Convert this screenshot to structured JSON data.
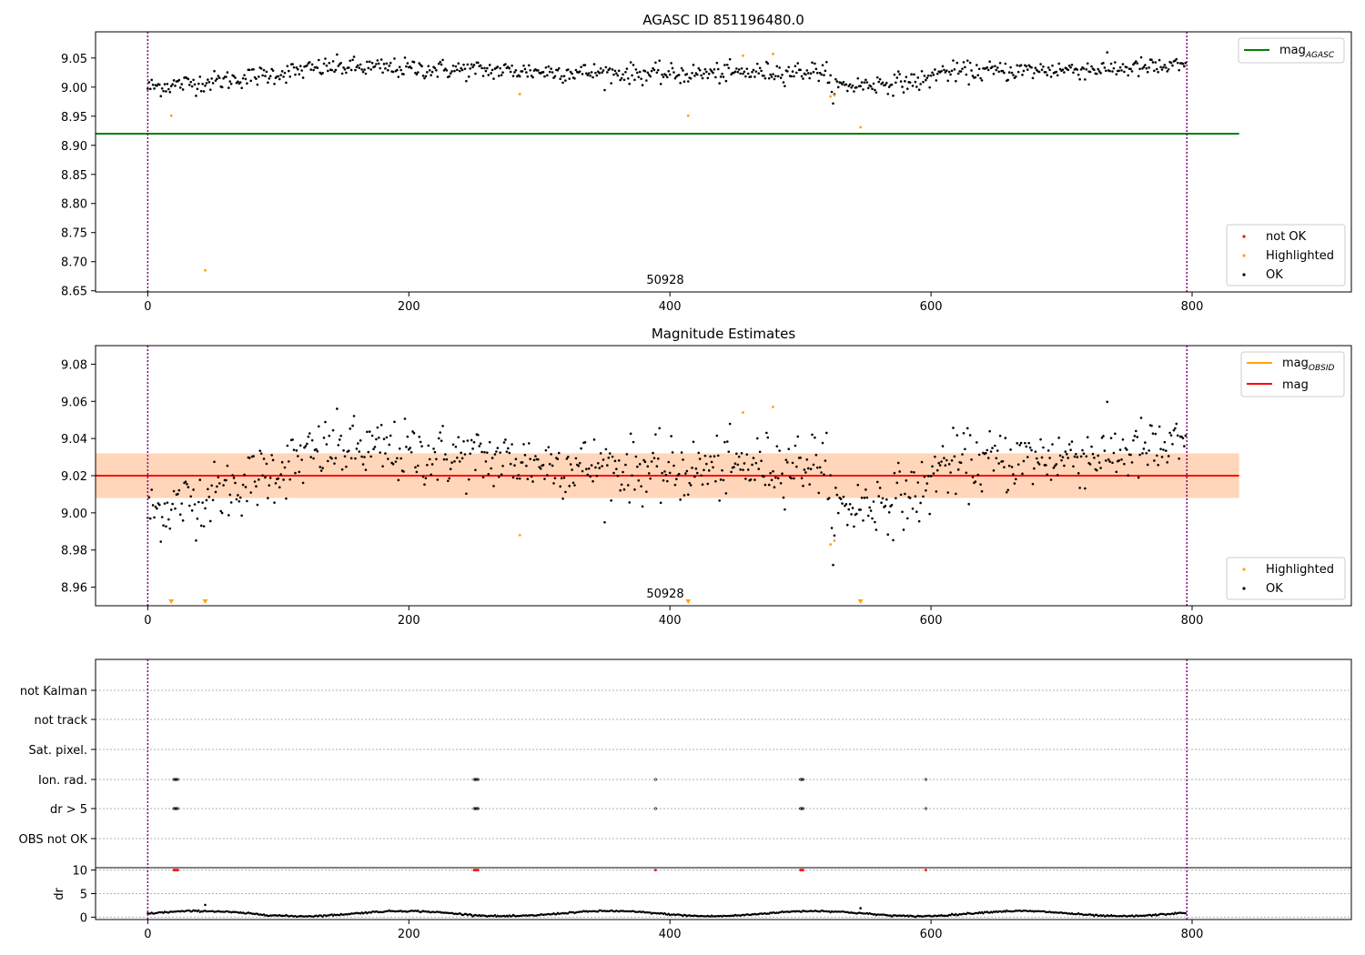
{
  "chart_data": [
    {
      "type": "scatter",
      "title": "AGASC ID 851196480.0",
      "xlabel": "",
      "ylabel": "",
      "xlim": [
        -40,
        922
      ],
      "ylim": [
        8.648,
        9.095
      ],
      "xticks": [
        "0",
        "200",
        "400",
        "600",
        "800"
      ],
      "yticks": [
        "8.65",
        "8.70",
        "8.75",
        "8.80",
        "8.85",
        "8.90",
        "8.95",
        "9.00",
        "9.05"
      ],
      "obsid_label": "50928",
      "obs_boundaries": [
        0,
        796
      ],
      "mag_agasc": 8.92,
      "mag_agasc_x_range": [
        -40,
        836
      ],
      "series_ok": {
        "name": "OK",
        "color": "#000000",
        "n_points": 796,
        "description": "magnitude estimates, mean 9.02",
        "segments": [
          {
            "x": [
              0,
              60
            ],
            "y_start": 9.0,
            "y_end": 9.012
          },
          {
            "x": [
              60,
              140
            ],
            "y_start": 9.012,
            "y_end": 9.035
          },
          {
            "x": [
              140,
              400
            ],
            "y_start": 9.035,
            "y_end": 9.022
          },
          {
            "x": [
              400,
              520
            ],
            "y_start": 9.022,
            "y_end": 9.028
          },
          {
            "x": [
              520,
              600
            ],
            "y_start": 9.0,
            "y_end": 9.012
          },
          {
            "x": [
              600,
              796
            ],
            "y_start": 9.025,
            "y_end": 9.035
          }
        ]
      },
      "series_highlighted": {
        "name": "Highlighted",
        "color": "#ffa500",
        "points": [
          [
            18,
            8.951
          ],
          [
            44,
            8.685
          ],
          [
            285,
            8.988
          ],
          [
            414,
            8.951
          ],
          [
            456,
            9.054
          ],
          [
            479,
            9.057
          ],
          [
            523,
            8.984
          ],
          [
            526,
            8.986
          ],
          [
            546,
            8.931
          ]
        ]
      },
      "legend_top": [
        {
          "name": "mag",
          "subscript": "AGASC",
          "color": "#008000"
        }
      ],
      "legend_bottom": [
        {
          "name": "not OK",
          "color": "#ff0000"
        },
        {
          "name": "Highlighted",
          "color": "#ffa500"
        },
        {
          "name": "OK",
          "color": "#000000"
        }
      ]
    },
    {
      "type": "scatter",
      "title": "Magnitude Estimates",
      "xlabel": "",
      "ylabel": "",
      "xlim": [
        -40,
        922
      ],
      "ylim": [
        8.95,
        9.09
      ],
      "xticks": [
        "0",
        "200",
        "400",
        "600",
        "800"
      ],
      "yticks": [
        "8.96",
        "8.98",
        "9.00",
        "9.02",
        "9.04",
        "9.06",
        "9.08"
      ],
      "obsid_label": "50928",
      "obs_boundaries": [
        0,
        796
      ],
      "mag_obsid": 9.02,
      "mag": 9.02,
      "band_inner": [
        9.008,
        9.032
      ],
      "band_outer": [
        9.008,
        9.032
      ],
      "band_x_range": [
        -40,
        836
      ],
      "series_highlighted": {
        "name": "Highlighted",
        "color": "#ffa500",
        "points": [
          [
            285,
            8.988
          ],
          [
            456,
            9.054
          ],
          [
            479,
            9.057
          ],
          [
            523,
            8.983
          ],
          [
            526,
            8.985
          ]
        ],
        "off_scale_below": [
          18,
          44,
          414,
          546
        ]
      },
      "legend_top": [
        {
          "name": "mag",
          "subscript": "OBSID",
          "color": "#ffa500"
        },
        {
          "name": "mag",
          "subscript": "",
          "color": "#ff0000"
        }
      ],
      "legend_bottom": [
        {
          "name": "Highlighted",
          "color": "#ffa500"
        },
        {
          "name": "OK",
          "color": "#000000"
        }
      ]
    },
    {
      "type": "scatter",
      "title": "",
      "xlabel": "",
      "xlim": [
        -40,
        922
      ],
      "xticks": [
        "0",
        "200",
        "400",
        "600",
        "800"
      ],
      "flag_rows": [
        "not Kalman",
        "not track",
        "Sat. pixel.",
        "Ion. rad.",
        "dr > 5",
        "OBS not OK"
      ],
      "flag_events": {
        "Ion. rad.": [
          20,
          21,
          22,
          23,
          250,
          251,
          252,
          253,
          389,
          500,
          501,
          502,
          596
        ],
        "dr > 5": [
          20,
          21,
          22,
          23,
          250,
          251,
          252,
          253,
          389,
          500,
          501,
          502,
          596
        ]
      },
      "dr": {
        "ylabel": "dr",
        "yticks": [
          "0",
          "5",
          "10"
        ],
        "ylim": [
          -0.5,
          10.5
        ],
        "baseline_range": [
          0.2,
          1.3
        ],
        "spikes_not_ok": [
          [
            20,
            10
          ],
          [
            21,
            10
          ],
          [
            22,
            10
          ],
          [
            23,
            10
          ],
          [
            250,
            10
          ],
          [
            251,
            10
          ],
          [
            252,
            10
          ],
          [
            253,
            10
          ],
          [
            389,
            10
          ],
          [
            500,
            10
          ],
          [
            501,
            10
          ],
          [
            502,
            10
          ],
          [
            596,
            10
          ]
        ],
        "outliers": [
          [
            44,
            2.6
          ],
          [
            546,
            1.9
          ]
        ]
      }
    }
  ]
}
